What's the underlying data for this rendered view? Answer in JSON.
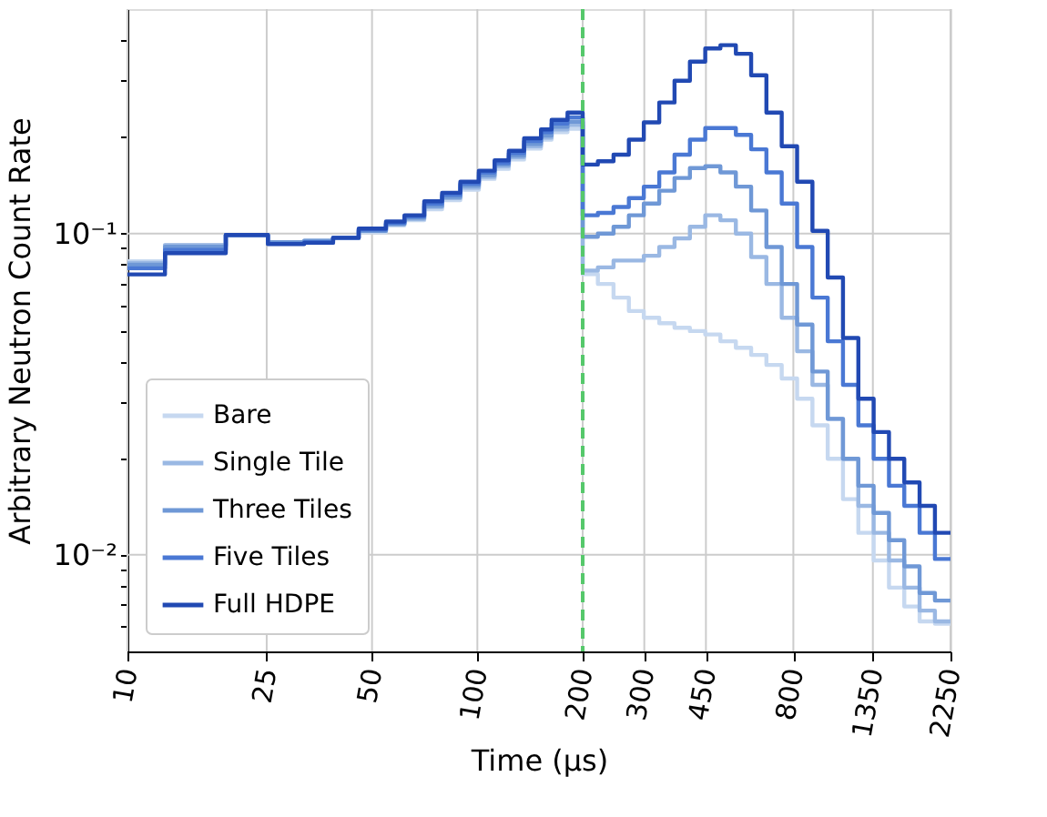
{
  "chart_data": {
    "type": "step",
    "xlabel": "Time (μs)",
    "ylabel": "Arbitrary Neutron Count Rate",
    "x": [
      10,
      12.8,
      19.1,
      25.2,
      32,
      38.7,
      45.8,
      54.8,
      61.9,
      70.5,
      79.3,
      89.4,
      101,
      112,
      123,
      136,
      152,
      163,
      181,
      200,
      200,
      221,
      245,
      271,
      299,
      331,
      366,
      405,
      448,
      495,
      548,
      606,
      670,
      741,
      820,
      907,
      1003,
      1109,
      1227,
      1357,
      1501,
      1660,
      1836,
      2031,
      2250
    ],
    "series": [
      {
        "name": "Bare",
        "color": "#c6d8f0",
        "values": [
          0.082,
          0.092,
          0.099,
          0.094,
          0.095,
          0.097,
          0.101,
          0.106,
          0.11,
          0.119,
          0.127,
          0.137,
          0.148,
          0.159,
          0.17,
          0.184,
          0.196,
          0.207,
          0.212,
          0.212,
          0.0748,
          0.0697,
          0.0632,
          0.0574,
          0.0547,
          0.0526,
          0.0509,
          0.0497,
          0.0485,
          0.0462,
          0.0441,
          0.0419,
          0.039,
          0.0354,
          0.0306,
          0.0253,
          0.0199,
          0.0149,
          0.0117,
          0.0096,
          0.0079,
          0.0069,
          0.0062,
          0.0061,
          0.0061
        ]
      },
      {
        "name": "Single Tile",
        "color": "#9ab8e3",
        "values": [
          0.081,
          0.092,
          0.099,
          0.094,
          0.095,
          0.097,
          0.102,
          0.107,
          0.111,
          0.121,
          0.129,
          0.139,
          0.15,
          0.162,
          0.173,
          0.187,
          0.199,
          0.211,
          0.218,
          0.218,
          0.0767,
          0.0785,
          0.0824,
          0.0824,
          0.0853,
          0.0908,
          0.0966,
          0.105,
          0.114,
          0.11,
          0.1,
          0.0845,
          0.0697,
          0.0547,
          0.043,
          0.0338,
          0.0265,
          0.0199,
          0.0142,
          0.0117,
          0.0096,
          0.0079,
          0.0067,
          0.0062,
          0.0062
        ]
      },
      {
        "name": "Three Tiles",
        "color": "#6f98d6",
        "values": [
          0.08,
          0.091,
          0.099,
          0.094,
          0.095,
          0.097,
          0.102,
          0.107,
          0.112,
          0.122,
          0.13,
          0.141,
          0.152,
          0.164,
          0.175,
          0.19,
          0.202,
          0.215,
          0.223,
          0.223,
          0.0977,
          0.1,
          0.105,
          0.114,
          0.124,
          0.136,
          0.149,
          0.16,
          0.162,
          0.155,
          0.14,
          0.118,
          0.0908,
          0.0697,
          0.0521,
          0.0372,
          0.0265,
          0.0199,
          0.0164,
          0.0135,
          0.0111,
          0.0092,
          0.0076,
          0.0072,
          0.0072
        ]
      },
      {
        "name": "Five Tiles",
        "color": "#4a78d4",
        "values": [
          0.078,
          0.089,
          0.099,
          0.093,
          0.094,
          0.097,
          0.103,
          0.108,
          0.113,
          0.124,
          0.132,
          0.143,
          0.155,
          0.166,
          0.178,
          0.194,
          0.207,
          0.22,
          0.23,
          0.23,
          0.114,
          0.116,
          0.121,
          0.129,
          0.14,
          0.155,
          0.176,
          0.196,
          0.213,
          0.213,
          0.203,
          0.183,
          0.155,
          0.124,
          0.0908,
          0.0632,
          0.0462,
          0.0338,
          0.0253,
          0.0199,
          0.0164,
          0.0142,
          0.0117,
          0.0097,
          0.0097
        ]
      },
      {
        "name": "Full HDPE",
        "color": "#2149b3",
        "values": [
          0.0746,
          0.0869,
          0.099,
          0.0928,
          0.0936,
          0.097,
          0.1036,
          0.109,
          0.114,
          0.126,
          0.134,
          0.145,
          0.157,
          0.169,
          0.181,
          0.198,
          0.211,
          0.226,
          0.238,
          0.238,
          0.164,
          0.168,
          0.176,
          0.196,
          0.222,
          0.256,
          0.299,
          0.343,
          0.377,
          0.386,
          0.363,
          0.311,
          0.238,
          0.187,
          0.145,
          0.102,
          0.073,
          0.0473,
          0.0306,
          0.0241,
          0.0199,
          0.0168,
          0.0142,
          0.0117,
          0.0117
        ]
      }
    ],
    "log": "xy",
    "xlim": [
      10,
      2250
    ],
    "ylim": [
      0.005,
      0.5
    ],
    "xticks": [
      10,
      25,
      50,
      100,
      200,
      300,
      450,
      800,
      1350,
      2250
    ],
    "yticks": [
      {
        "value": 0.006,
        "label": null
      },
      {
        "value": 0.007,
        "label": null
      },
      {
        "value": 0.008,
        "label": null
      },
      {
        "value": 0.009,
        "label": null
      },
      {
        "value": 0.01,
        "label": "10⁻²"
      },
      {
        "value": 0.02,
        "label": null
      },
      {
        "value": 0.03,
        "label": null
      },
      {
        "value": 0.04,
        "label": null
      },
      {
        "value": 0.05,
        "label": null
      },
      {
        "value": 0.06,
        "label": null
      },
      {
        "value": 0.07,
        "label": null
      },
      {
        "value": 0.08,
        "label": null
      },
      {
        "value": 0.09,
        "label": null
      },
      {
        "value": 0.1,
        "label": "10⁻¹"
      },
      {
        "value": 0.2,
        "label": null
      },
      {
        "value": 0.3,
        "label": null
      },
      {
        "value": 0.4,
        "label": null
      }
    ],
    "ref_lines": [
      {
        "axis": "x",
        "value": 200,
        "color": "#55c86b",
        "line_style": "dashed"
      }
    ],
    "grid": true,
    "legend": "bottom left",
    "marker": "none",
    "line_style": "solid"
  }
}
